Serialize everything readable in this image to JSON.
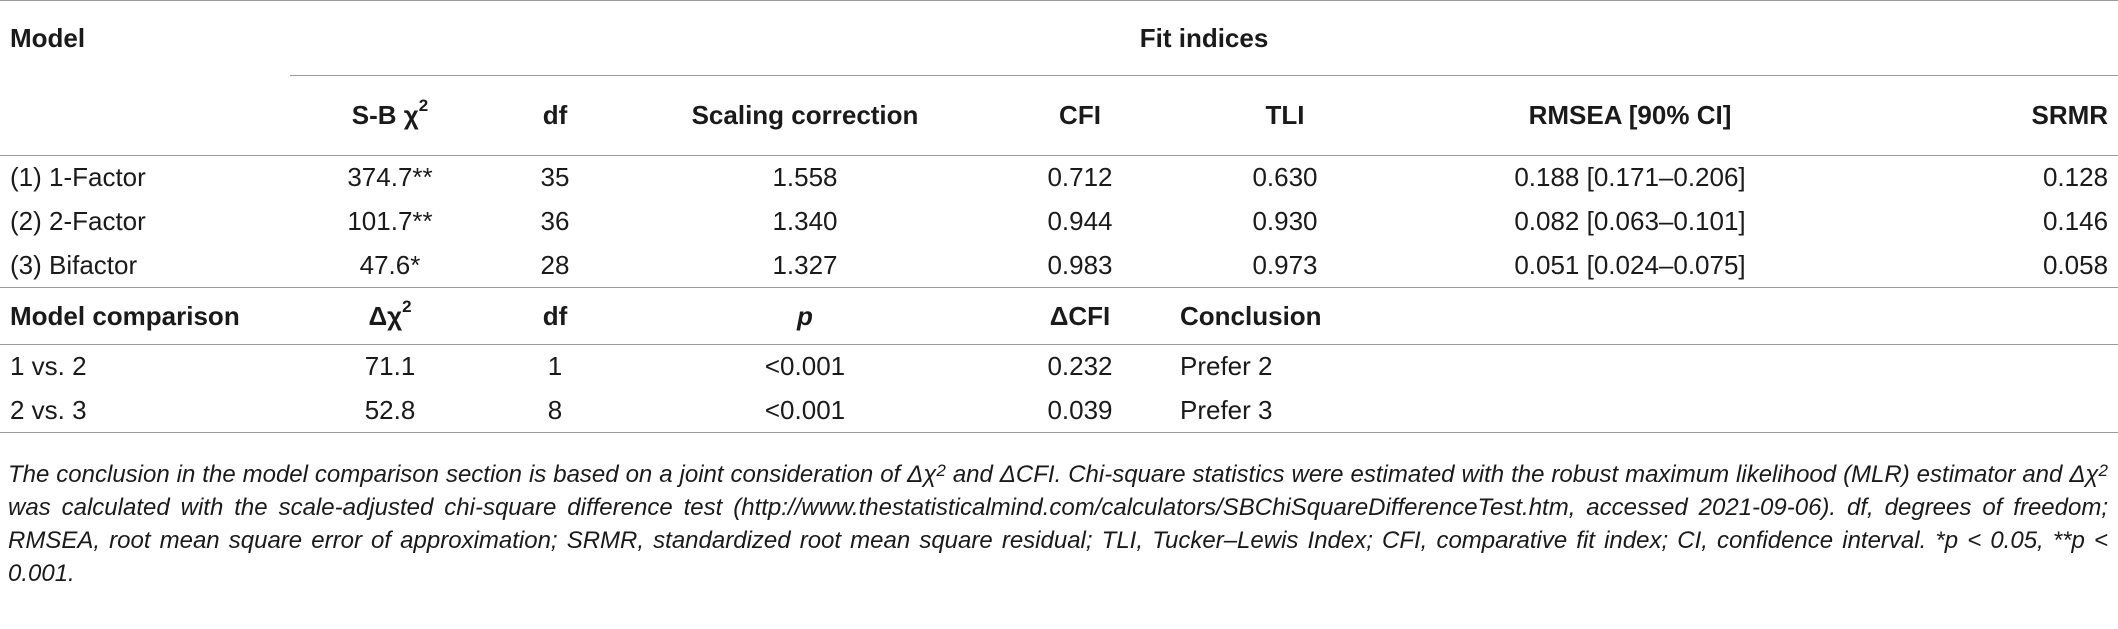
{
  "table": {
    "header": {
      "model": "Model",
      "fit_indices": "Fit indices",
      "columns": [
        "S-B χ",
        "df",
        "Scaling correction",
        "CFI",
        "TLI",
        "RMSEA [90% CI]",
        "SRMR"
      ],
      "sb_sup": "2"
    },
    "rows": [
      {
        "model": "(1) 1-Factor",
        "sb": "374.7**",
        "df": "35",
        "scaling": "1.558",
        "cfi": "0.712",
        "tli": "0.630",
        "rmsea": "0.188 [0.171–0.206]",
        "srmr": "0.128"
      },
      {
        "model": "(2) 2-Factor",
        "sb": "101.7**",
        "df": "36",
        "scaling": "1.340",
        "cfi": "0.944",
        "tli": "0.930",
        "rmsea": "0.082 [0.063–0.101]",
        "srmr": "0.146"
      },
      {
        "model": "(3) Bifactor",
        "sb": "47.6*",
        "df": "28",
        "scaling": "1.327",
        "cfi": "0.983",
        "tli": "0.973",
        "rmsea": "0.051 [0.024–0.075]",
        "srmr": "0.058"
      }
    ],
    "comparison_header": {
      "label": "Model comparison",
      "delta_chi": "Δχ",
      "delta_chi_sup": "2",
      "df": "df",
      "p": "p",
      "delta_cfi": "ΔCFI",
      "conclusion": "Conclusion"
    },
    "comparison_rows": [
      {
        "label": "1 vs. 2",
        "delta_chi": "71.1",
        "df": "1",
        "p": "<0.001",
        "delta_cfi": "0.232",
        "conclusion": "Prefer 2"
      },
      {
        "label": "2 vs. 3",
        "delta_chi": "52.8",
        "df": "8",
        "p": "<0.001",
        "delta_cfi": "0.039",
        "conclusion": "Prefer 3"
      }
    ]
  },
  "footnote": {
    "part1": "The conclusion in the model comparison section is based on a joint consideration of Δχ",
    "sup1": "2",
    "part2": " and ΔCFI. Chi-square statistics were estimated with the robust maximum likelihood (MLR) estimator and Δχ",
    "sup2": "2",
    "part3": " was calculated with the scale-adjusted chi-square difference test (http://www.thestatisticalmind.com/calculators/SBChiSquareDifferenceTest.htm, accessed 2021-09-06). df, degrees of freedom; RMSEA, root mean square error of approximation; SRMR, standardized root mean square residual; TLI, Tucker–Lewis Index; CFI, comparative fit index; CI, confidence interval. *p < 0.05, **p < 0.001."
  }
}
